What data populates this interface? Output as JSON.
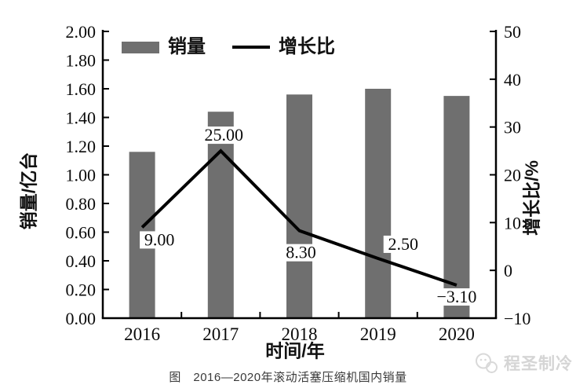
{
  "figure": {
    "caption": "图　2016—2020年滚动活塞压缩机国内销量"
  },
  "watermark": {
    "icon": "chat-bubbles-icon",
    "text": "程圣制冷"
  },
  "colors": {
    "bar": "#6f6f6f",
    "line": "#000000",
    "axis": "#000000",
    "text": "#0a0a0a",
    "caption_text": "#3a3a3a",
    "watermark_text": "#d5d5d5",
    "background": "#ffffff"
  },
  "chart_data": {
    "type": "bar",
    "subtype": "bar+line combo, dual y-axis",
    "categories": [
      "2016",
      "2017",
      "2018",
      "2019",
      "2020"
    ],
    "series": [
      {
        "name": "销量",
        "type": "bar",
        "axis": "left",
        "values": [
          1.16,
          1.44,
          1.56,
          1.6,
          1.55
        ]
      },
      {
        "name": "增长比",
        "type": "line",
        "axis": "right",
        "values": [
          9.0,
          25.0,
          8.3,
          2.5,
          -3.1
        ],
        "point_labels": [
          "9.00",
          "25.00",
          "8.30",
          "2.50",
          "−3.10"
        ]
      }
    ],
    "xlabel": "时间/年",
    "left_axis": {
      "label": "销量/亿台",
      "min": 0,
      "max": 2,
      "tick_step": 0.2,
      "ticks": [
        "0.00",
        "0.20",
        "0.40",
        "0.60",
        "0.80",
        "1.00",
        "1.20",
        "1.40",
        "1.60",
        "1.80",
        "2.00"
      ]
    },
    "right_axis": {
      "label": "增长比/%",
      "min": -10,
      "max": 50,
      "tick_step": 10,
      "ticks": [
        "−10",
        "0",
        "10",
        "20",
        "30",
        "40",
        "50"
      ]
    },
    "grid": false,
    "legend_position": "top-left inside plot"
  }
}
